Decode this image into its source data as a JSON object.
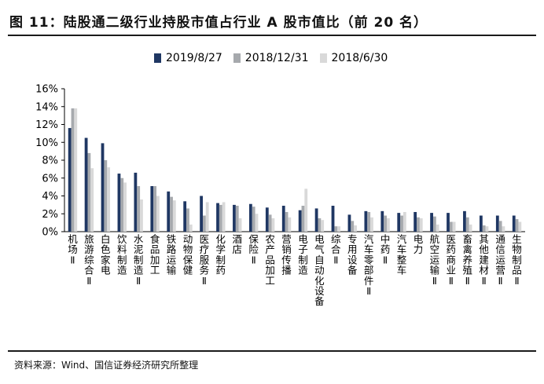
{
  "figure": {
    "title": "图 11：陆股通二级行业持股市值占行业 A 股市值比（前 20 名）",
    "source": "资料来源：Wind、国信证券经济研究所整理"
  },
  "colors": {
    "series_0": "#1f3763",
    "series_1": "#a6a9ad",
    "series_2": "#d9d9d9"
  },
  "chart_data": {
    "type": "bar",
    "title": "",
    "xlabel": "",
    "ylabel": "",
    "ylim": [
      0,
      16
    ],
    "yticks": [
      "0%",
      "2%",
      "4%",
      "6%",
      "8%",
      "10%",
      "12%",
      "14%",
      "16%"
    ],
    "grid": false,
    "legend_position": "top",
    "categories": [
      "机场Ⅱ",
      "旅游综合Ⅱ",
      "白色家电",
      "饮料制造",
      "水泥制造Ⅱ",
      "食品加工",
      "铁路运输",
      "动物保健",
      "医疗服务Ⅱ",
      "化学制药",
      "酒店",
      "保险Ⅱ",
      "农产品加工",
      "营销传播",
      "电子制造",
      "电气自动化设备",
      "综合Ⅱ",
      "专用设备",
      "汽车零部件Ⅱ",
      "中药Ⅱ",
      "汽车整车",
      "电力",
      "航空运输Ⅱ",
      "医药商业Ⅱ",
      "畜禽养殖Ⅱ",
      "其他建材Ⅱ",
      "通信运营Ⅱ",
      "生物制品Ⅱ"
    ],
    "series": [
      {
        "name": "2019/8/27",
        "values": [
          11.6,
          10.5,
          9.9,
          6.5,
          6.6,
          5.1,
          4.5,
          3.4,
          4.0,
          3.2,
          3.0,
          3.1,
          2.7,
          2.9,
          2.4,
          2.6,
          2.9,
          1.9,
          2.3,
          2.3,
          2.1,
          2.2,
          2.1,
          2.1,
          2.3,
          1.8,
          1.8,
          1.8
        ]
      },
      {
        "name": "2018/12/31",
        "values": [
          13.8,
          8.8,
          8.0,
          6.0,
          5.1,
          5.1,
          3.9,
          2.6,
          1.8,
          3.0,
          2.9,
          2.8,
          1.9,
          2.2,
          2.9,
          1.5,
          0.6,
          1.2,
          2.2,
          1.8,
          1.8,
          1.6,
          1.7,
          1.1,
          1.6,
          0.7,
          1.2,
          1.4
        ]
      },
      {
        "name": "2018/6/30",
        "values": [
          13.8,
          7.1,
          7.2,
          5.5,
          3.6,
          4.0,
          3.5,
          0.8,
          3.3,
          3.3,
          1.5,
          2.0,
          1.5,
          1.6,
          4.8,
          1.3,
          0.6,
          0.7,
          1.6,
          1.5,
          2.2,
          1.5,
          0.8,
          1.1,
          0.8,
          0.6,
          0.6,
          1.1
        ]
      }
    ]
  }
}
